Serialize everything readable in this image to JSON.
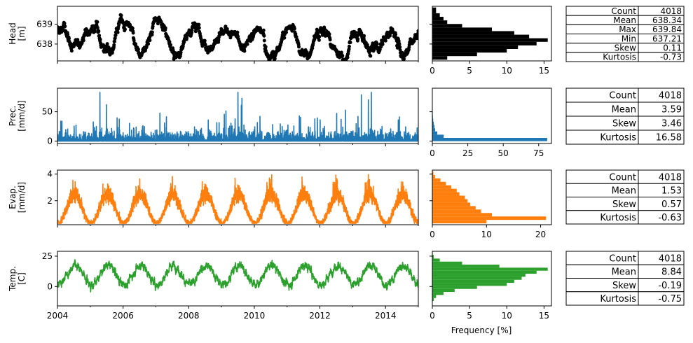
{
  "xaxis": {
    "ticks": [
      "2004",
      "2006",
      "2008",
      "2010",
      "2012",
      "2014"
    ],
    "range": [
      "2004-01-01",
      "2015-01-01"
    ]
  },
  "hist_xlabel": "Frequency [%]",
  "chart_data": [
    {
      "type": "scatter",
      "name": "head",
      "ylabel_line1": "Head",
      "ylabel_line2": "[m]",
      "color": "#000000",
      "ylim": [
        637.15,
        639.9
      ],
      "yticks": [
        638,
        639
      ],
      "x_range": [
        "2004-01-01",
        "2014-12-31"
      ],
      "y_min": 637.21,
      "y_max": 639.84,
      "mean": 638.34,
      "seasonal_amplitude": 0.6,
      "hist": {
        "xlim": [
          0,
          16
        ],
        "xticks": [
          0,
          5,
          10,
          15
        ],
        "bin_edges": [
          637.21,
          637.39,
          637.57,
          637.75,
          637.93,
          638.11,
          638.29,
          638.47,
          638.65,
          638.83,
          639.01,
          639.19,
          639.37,
          639.55,
          639.84
        ],
        "freq": [
          2,
          6,
          10,
          11.5,
          14,
          15.5,
          13,
          11,
          8,
          4,
          2,
          1.5,
          1,
          0.5
        ]
      },
      "stats": [
        {
          "label": "Count",
          "value": "4018"
        },
        {
          "label": "Mean",
          "value": "638.34"
        },
        {
          "label": "Max",
          "value": "639.84"
        },
        {
          "label": "Min",
          "value": "637.21"
        },
        {
          "label": "Skew",
          "value": "0.11"
        },
        {
          "label": "Kurtosis",
          "value": "-0.73"
        }
      ]
    },
    {
      "type": "line",
      "name": "precipitation",
      "ylabel_line1": "Prec.",
      "ylabel_line2": "[mm/d]",
      "color": "#1f77b4",
      "ylim": [
        -4,
        90
      ],
      "yticks": [
        0,
        50
      ],
      "x_range": [
        "2004-01-01",
        "2014-12-31"
      ],
      "y_max": 83,
      "mean": 3.59,
      "hist": {
        "xlim": [
          0,
          84
        ],
        "xticks": [
          0,
          25,
          50,
          75
        ],
        "bin_edges": [
          0,
          5.5,
          11,
          16.5,
          22,
          27.5,
          33,
          38.5,
          44,
          49.5,
          55,
          60.5,
          66,
          71.5,
          77,
          83
        ],
        "freq": [
          81,
          8,
          3.5,
          2,
          1.5,
          1,
          0.6,
          0.4,
          0.3,
          0.2,
          0.1,
          0.1,
          0.05,
          0.05,
          0.05
        ]
      },
      "stats": [
        {
          "label": "Count",
          "value": "4018"
        },
        {
          "label": "Mean",
          "value": "3.59"
        },
        {
          "label": "Skew",
          "value": "3.46"
        },
        {
          "label": "Kurtosis",
          "value": "16.58"
        }
      ]
    },
    {
      "type": "line",
      "name": "evaporation",
      "ylabel_line1": "Evap.",
      "ylabel_line2": "[mm/d]",
      "color": "#ff7f0e",
      "ylim": [
        0.2,
        4.3
      ],
      "yticks": [
        2,
        4
      ],
      "x_range": [
        "2004-01-01",
        "2014-12-31"
      ],
      "y_min": 0.3,
      "y_max": 4.2,
      "mean": 1.53,
      "hist": {
        "xlim": [
          0,
          22
        ],
        "xticks": [
          0,
          10,
          20
        ],
        "bin_edges": [
          0.3,
          0.56,
          0.82,
          1.08,
          1.34,
          1.6,
          1.86,
          2.12,
          2.38,
          2.64,
          2.9,
          3.16,
          3.42,
          3.68,
          3.94,
          4.2
        ],
        "freq": [
          10,
          21,
          11,
          9,
          8,
          7,
          6.5,
          6,
          5,
          4.5,
          3.5,
          2.5,
          1.5,
          0.5,
          0.2
        ]
      },
      "stats": [
        {
          "label": "Count",
          "value": "4018"
        },
        {
          "label": "Mean",
          "value": "1.53"
        },
        {
          "label": "Skew",
          "value": "0.57"
        },
        {
          "label": "Kurtosis",
          "value": "-0.63"
        }
      ]
    },
    {
      "type": "line",
      "name": "temperature",
      "ylabel_line1": "Temp.",
      "ylabel_line2": "[C]",
      "color": "#2ca02c",
      "ylim": [
        -16,
        29
      ],
      "yticks": [
        0,
        25
      ],
      "x_range": [
        "2004-01-01",
        "2014-12-31"
      ],
      "y_min": -12,
      "y_max": 26,
      "mean": 8.84,
      "hist": {
        "xlim": [
          0,
          16
        ],
        "xticks": [
          0,
          5,
          10,
          15
        ],
        "bin_edges": [
          -12,
          -9.5,
          -7,
          -4.5,
          -2,
          0.5,
          3,
          5.5,
          8,
          10.5,
          13,
          15.5,
          18,
          20.5,
          23,
          26
        ],
        "freq": [
          0.2,
          0.5,
          1.5,
          3,
          6,
          10,
          11,
          12,
          12.5,
          14,
          15.5,
          9,
          4,
          1,
          0.2
        ]
      },
      "stats": [
        {
          "label": "Count",
          "value": "4018"
        },
        {
          "label": "Mean",
          "value": "8.84"
        },
        {
          "label": "Skew",
          "value": "-0.19"
        },
        {
          "label": "Kurtosis",
          "value": "-0.75"
        }
      ]
    }
  ]
}
